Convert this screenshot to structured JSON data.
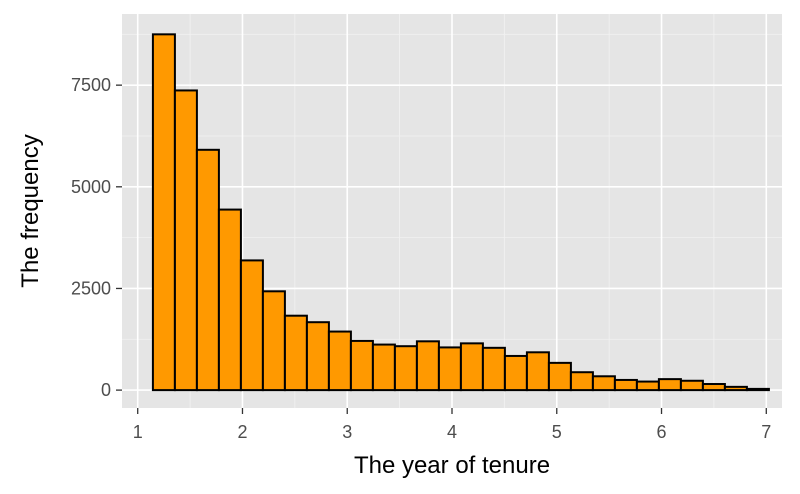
{
  "chart_data": {
    "type": "bar",
    "subtype": "histogram",
    "title": "",
    "xlabel": "The year of tenure",
    "ylabel": "The frequency",
    "xlim": [
      0.85,
      7.15
    ],
    "ylim": [
      -440,
      9250
    ],
    "x_ticks": [
      1,
      2,
      3,
      4,
      5,
      6,
      7
    ],
    "y_ticks": [
      0,
      2500,
      5000,
      7500
    ],
    "x_tick_labels": [
      "1",
      "2",
      "3",
      "4",
      "5",
      "6",
      "7"
    ],
    "y_tick_labels": [
      "0",
      "2500",
      "5000",
      "7500"
    ],
    "grid": true,
    "legend": "none",
    "bin_width": 0.21,
    "bin_centers": [
      1.25,
      1.46,
      1.67,
      1.88,
      2.09,
      2.3,
      2.51,
      2.72,
      2.93,
      3.14,
      3.35,
      3.56,
      3.77,
      3.98,
      4.19,
      4.4,
      4.61,
      4.82,
      5.03,
      5.24,
      5.45,
      5.66,
      5.87,
      6.08,
      6.29,
      6.5,
      6.71,
      6.92
    ],
    "values": [
      8750,
      7370,
      5910,
      4440,
      3190,
      2430,
      1830,
      1670,
      1440,
      1210,
      1120,
      1080,
      1200,
      1050,
      1150,
      1040,
      840,
      930,
      670,
      440,
      340,
      250,
      210,
      270,
      230,
      150,
      80,
      30
    ],
    "colors": {
      "bar_fill": "#ff9900",
      "bar_outline": "#000000",
      "panel": "#e5e5e5",
      "grid": "#ffffff"
    }
  }
}
